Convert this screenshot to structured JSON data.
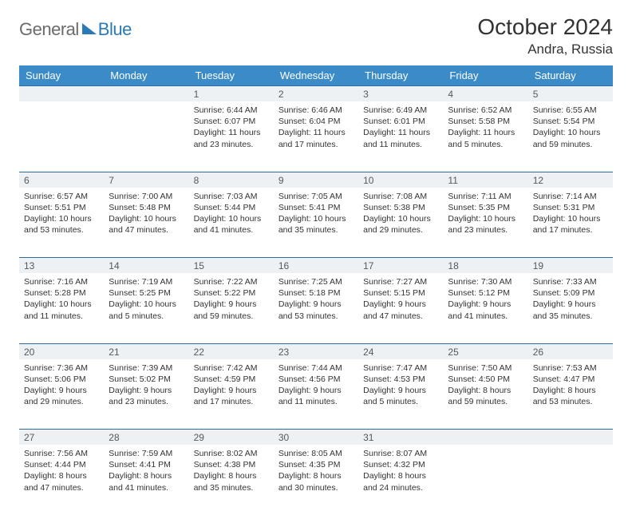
{
  "logo": {
    "general": "General",
    "blue": "Blue"
  },
  "title": "October 2024",
  "location": "Andra, Russia",
  "dow": [
    "Sunday",
    "Monday",
    "Tuesday",
    "Wednesday",
    "Thursday",
    "Friday",
    "Saturday"
  ],
  "colors": {
    "header_bg": "#3b8bc8",
    "header_fg": "#ffffff",
    "daynum_bg": "#eef1f3",
    "daynum_border": "#2e6ca0",
    "text": "#333333",
    "logo_gray": "#6b6b6b",
    "logo_blue": "#2a7ab8"
  },
  "weeks": [
    {
      "nums": [
        "",
        "",
        "1",
        "2",
        "3",
        "4",
        "5"
      ],
      "cells": [
        null,
        null,
        {
          "sunrise": "Sunrise: 6:44 AM",
          "sunset": "Sunset: 6:07 PM",
          "daylight": "Daylight: 11 hours and 23 minutes."
        },
        {
          "sunrise": "Sunrise: 6:46 AM",
          "sunset": "Sunset: 6:04 PM",
          "daylight": "Daylight: 11 hours and 17 minutes."
        },
        {
          "sunrise": "Sunrise: 6:49 AM",
          "sunset": "Sunset: 6:01 PM",
          "daylight": "Daylight: 11 hours and 11 minutes."
        },
        {
          "sunrise": "Sunrise: 6:52 AM",
          "sunset": "Sunset: 5:58 PM",
          "daylight": "Daylight: 11 hours and 5 minutes."
        },
        {
          "sunrise": "Sunrise: 6:55 AM",
          "sunset": "Sunset: 5:54 PM",
          "daylight": "Daylight: 10 hours and 59 minutes."
        }
      ]
    },
    {
      "nums": [
        "6",
        "7",
        "8",
        "9",
        "10",
        "11",
        "12"
      ],
      "cells": [
        {
          "sunrise": "Sunrise: 6:57 AM",
          "sunset": "Sunset: 5:51 PM",
          "daylight": "Daylight: 10 hours and 53 minutes."
        },
        {
          "sunrise": "Sunrise: 7:00 AM",
          "sunset": "Sunset: 5:48 PM",
          "daylight": "Daylight: 10 hours and 47 minutes."
        },
        {
          "sunrise": "Sunrise: 7:03 AM",
          "sunset": "Sunset: 5:44 PM",
          "daylight": "Daylight: 10 hours and 41 minutes."
        },
        {
          "sunrise": "Sunrise: 7:05 AM",
          "sunset": "Sunset: 5:41 PM",
          "daylight": "Daylight: 10 hours and 35 minutes."
        },
        {
          "sunrise": "Sunrise: 7:08 AM",
          "sunset": "Sunset: 5:38 PM",
          "daylight": "Daylight: 10 hours and 29 minutes."
        },
        {
          "sunrise": "Sunrise: 7:11 AM",
          "sunset": "Sunset: 5:35 PM",
          "daylight": "Daylight: 10 hours and 23 minutes."
        },
        {
          "sunrise": "Sunrise: 7:14 AM",
          "sunset": "Sunset: 5:31 PM",
          "daylight": "Daylight: 10 hours and 17 minutes."
        }
      ]
    },
    {
      "nums": [
        "13",
        "14",
        "15",
        "16",
        "17",
        "18",
        "19"
      ],
      "cells": [
        {
          "sunrise": "Sunrise: 7:16 AM",
          "sunset": "Sunset: 5:28 PM",
          "daylight": "Daylight: 10 hours and 11 minutes."
        },
        {
          "sunrise": "Sunrise: 7:19 AM",
          "sunset": "Sunset: 5:25 PM",
          "daylight": "Daylight: 10 hours and 5 minutes."
        },
        {
          "sunrise": "Sunrise: 7:22 AM",
          "sunset": "Sunset: 5:22 PM",
          "daylight": "Daylight: 9 hours and 59 minutes."
        },
        {
          "sunrise": "Sunrise: 7:25 AM",
          "sunset": "Sunset: 5:18 PM",
          "daylight": "Daylight: 9 hours and 53 minutes."
        },
        {
          "sunrise": "Sunrise: 7:27 AM",
          "sunset": "Sunset: 5:15 PM",
          "daylight": "Daylight: 9 hours and 47 minutes."
        },
        {
          "sunrise": "Sunrise: 7:30 AM",
          "sunset": "Sunset: 5:12 PM",
          "daylight": "Daylight: 9 hours and 41 minutes."
        },
        {
          "sunrise": "Sunrise: 7:33 AM",
          "sunset": "Sunset: 5:09 PM",
          "daylight": "Daylight: 9 hours and 35 minutes."
        }
      ]
    },
    {
      "nums": [
        "20",
        "21",
        "22",
        "23",
        "24",
        "25",
        "26"
      ],
      "cells": [
        {
          "sunrise": "Sunrise: 7:36 AM",
          "sunset": "Sunset: 5:06 PM",
          "daylight": "Daylight: 9 hours and 29 minutes."
        },
        {
          "sunrise": "Sunrise: 7:39 AM",
          "sunset": "Sunset: 5:02 PM",
          "daylight": "Daylight: 9 hours and 23 minutes."
        },
        {
          "sunrise": "Sunrise: 7:42 AM",
          "sunset": "Sunset: 4:59 PM",
          "daylight": "Daylight: 9 hours and 17 minutes."
        },
        {
          "sunrise": "Sunrise: 7:44 AM",
          "sunset": "Sunset: 4:56 PM",
          "daylight": "Daylight: 9 hours and 11 minutes."
        },
        {
          "sunrise": "Sunrise: 7:47 AM",
          "sunset": "Sunset: 4:53 PM",
          "daylight": "Daylight: 9 hours and 5 minutes."
        },
        {
          "sunrise": "Sunrise: 7:50 AM",
          "sunset": "Sunset: 4:50 PM",
          "daylight": "Daylight: 8 hours and 59 minutes."
        },
        {
          "sunrise": "Sunrise: 7:53 AM",
          "sunset": "Sunset: 4:47 PM",
          "daylight": "Daylight: 8 hours and 53 minutes."
        }
      ]
    },
    {
      "nums": [
        "27",
        "28",
        "29",
        "30",
        "31",
        "",
        ""
      ],
      "cells": [
        {
          "sunrise": "Sunrise: 7:56 AM",
          "sunset": "Sunset: 4:44 PM",
          "daylight": "Daylight: 8 hours and 47 minutes."
        },
        {
          "sunrise": "Sunrise: 7:59 AM",
          "sunset": "Sunset: 4:41 PM",
          "daylight": "Daylight: 8 hours and 41 minutes."
        },
        {
          "sunrise": "Sunrise: 8:02 AM",
          "sunset": "Sunset: 4:38 PM",
          "daylight": "Daylight: 8 hours and 35 minutes."
        },
        {
          "sunrise": "Sunrise: 8:05 AM",
          "sunset": "Sunset: 4:35 PM",
          "daylight": "Daylight: 8 hours and 30 minutes."
        },
        {
          "sunrise": "Sunrise: 8:07 AM",
          "sunset": "Sunset: 4:32 PM",
          "daylight": "Daylight: 8 hours and 24 minutes."
        },
        null,
        null
      ]
    }
  ]
}
